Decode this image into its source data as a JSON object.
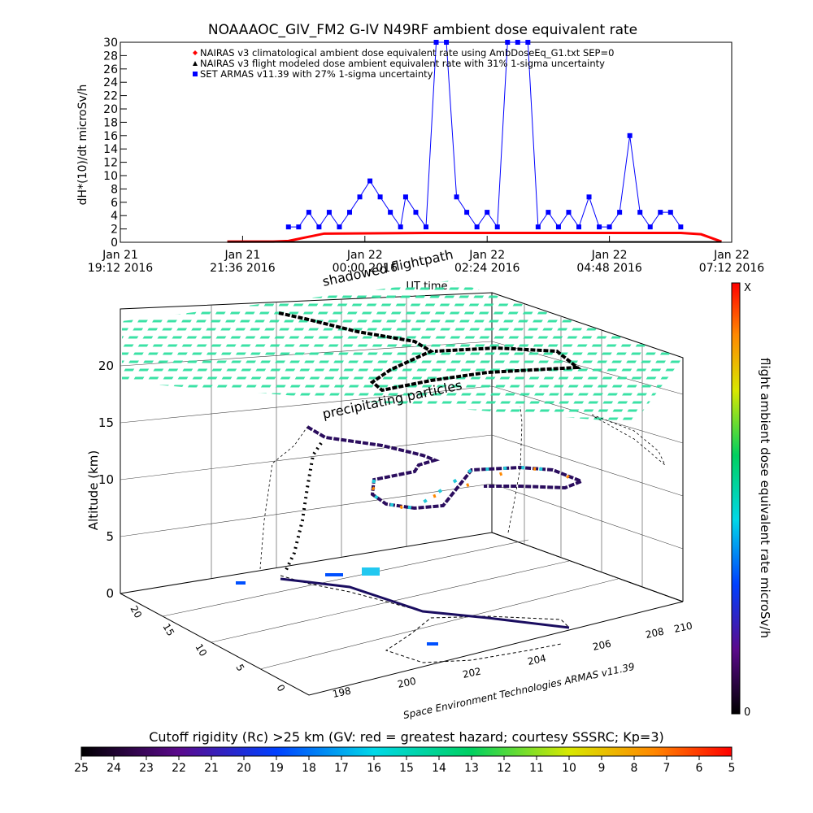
{
  "chart_data": [
    {
      "type": "line",
      "title": "NOAAAOC_GIV_FM2 G-IV    N49RF  ambient dose equivalent rate",
      "ylabel": "dH*(10)/dt microSv/h",
      "xlabel": "UT time",
      "ylim": [
        0,
        30
      ],
      "yticks": [
        "0",
        "2",
        "4",
        "6",
        "8",
        "10",
        "12",
        "14",
        "16",
        "18",
        "20",
        "22",
        "24",
        "26",
        "28",
        "30"
      ],
      "xticks": [
        {
          "l1": "Jan 21",
          "l2": "19:12 2016"
        },
        {
          "l1": "Jan 21",
          "l2": "21:36 2016"
        },
        {
          "l1": "Jan 22",
          "l2": "00:00 2016"
        },
        {
          "l1": "Jan 22",
          "l2": "02:24 2016"
        },
        {
          "l1": "Jan 22",
          "l2": "04:48 2016"
        },
        {
          "l1": "Jan 22",
          "l2": "07:12 2016"
        }
      ],
      "legend_position": "top-left",
      "legend": [
        {
          "marker": "diamond",
          "color": "#ff0000",
          "label": "NAIRAS v3 climatological ambient dose equivalent rate using AmbDoseEq_G1.txt SEP=0"
        },
        {
          "marker": "triangle",
          "color": "#000000",
          "label": "NAIRAS v3 flight modeled dose ambient equivalent rate with 31% 1-sigma uncertainty"
        },
        {
          "marker": "square",
          "color": "#0000ff",
          "label": "SET ARMAS v11.39 with 27% 1-sigma uncertainty"
        }
      ],
      "series": [
        {
          "name": "NAIRAS v3 climatological ambient dose equivalent rate using AmbDoseEq_G1.txt SEP=0",
          "color": "#ff0000",
          "x_hours": [
            2.1,
            3.0,
            3.3,
            4.0,
            6.0,
            8.0,
            10.0,
            11.0,
            11.4,
            11.8
          ],
          "values": [
            0.1,
            0.1,
            0.2,
            1.3,
            1.4,
            1.4,
            1.4,
            1.4,
            1.2,
            0.1
          ]
        },
        {
          "name": "NAIRAS v3 flight modeled dose ambient equivalent rate with 31% 1-sigma uncertainty",
          "color": "#000000",
          "x_hours": [
            2.1,
            4.0,
            6.0,
            8.0,
            10.0,
            11.8
          ],
          "values": [
            0.05,
            0.05,
            0.05,
            0.05,
            0.05,
            0.05
          ]
        },
        {
          "name": "SET ARMAS v11.39 with 27% 1-sigma uncertainty",
          "color": "#0000ff",
          "x_hours": [
            3.3,
            3.5,
            3.7,
            3.9,
            4.1,
            4.3,
            4.5,
            4.7,
            4.9,
            5.1,
            5.3,
            5.5,
            5.6,
            5.8,
            6.0,
            6.2,
            6.4,
            6.6,
            6.8,
            7.0,
            7.2,
            7.4,
            7.6,
            7.8,
            8.0,
            8.2,
            8.4,
            8.6,
            8.8,
            9.0,
            9.2,
            9.4,
            9.6,
            9.8,
            10.0,
            10.2,
            10.4,
            10.6,
            10.8,
            11.0
          ],
          "values": [
            2.3,
            2.3,
            4.5,
            2.3,
            4.5,
            2.3,
            4.5,
            6.8,
            9.2,
            6.8,
            4.5,
            2.3,
            6.8,
            4.5,
            2.3,
            30,
            30,
            6.8,
            4.5,
            2.3,
            4.5,
            2.3,
            30,
            30,
            30,
            2.3,
            4.5,
            2.3,
            4.5,
            2.3,
            6.8,
            2.3,
            2.3,
            4.5,
            16,
            4.5,
            2.3,
            4.5,
            4.5,
            2.3
          ]
        }
      ]
    },
    {
      "type": "scatter",
      "title": "shadowed flightpath",
      "annotation": "precipitating particles",
      "zlabel": "Altitude (km)",
      "zticks": [
        "0",
        "5",
        "10",
        "15",
        "20"
      ],
      "xticks": [
        "198",
        "200",
        "202",
        "204",
        "206",
        "208",
        "210"
      ],
      "yticks": [
        "0",
        "5",
        "10",
        "15",
        "20"
      ],
      "credit": "Space Environment Technologies ARMAS v11.39",
      "colorbar": {
        "label": "flight ambient dose equivalent rate microSv/h",
        "max_label": "X",
        "min_label": "0"
      }
    }
  ],
  "rigidity_bar": {
    "label": "Cutoff rigidity (Rc) >25 km (GV: red = greatest hazard; courtesy SSSRC; Kp=3)",
    "ticks": [
      "25",
      "24",
      "23",
      "22",
      "21",
      "20",
      "19",
      "18",
      "17",
      "16",
      "15",
      "14",
      "13",
      "12",
      "11",
      "10",
      "9",
      "8",
      "7",
      "6",
      "5"
    ]
  }
}
